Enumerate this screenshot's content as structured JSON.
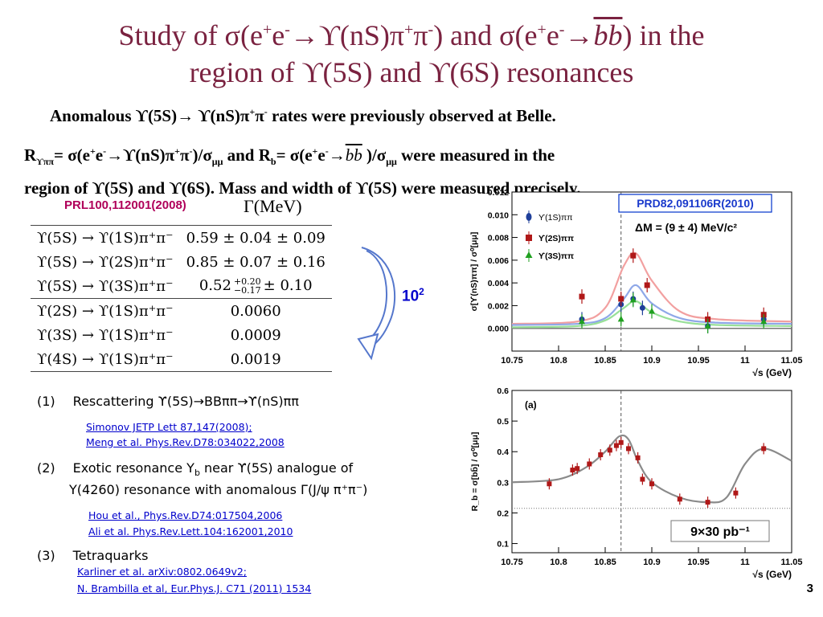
{
  "slide": {
    "title_line1_a": "Study of σ(e",
    "title_sup1": "+",
    "title_line1_b": "e",
    "title_sup2": "-",
    "title_line1_c": "→ϒ(nS)π",
    "title_sup3": "+",
    "title_line1_d": "π",
    "title_sup4": "-",
    "title_line1_e": ") and σ(e",
    "title_sup5": "+",
    "title_line1_f": "e",
    "title_sup6": "-",
    "title_line1_g": "→",
    "title_bb": "bb",
    "title_line1_h": ") in the",
    "title_line2": "region of ϒ(5S) and ϒ(6S) resonances",
    "page_number": "3"
  },
  "text": {
    "line1_a": "Anomalous ϒ(5S)→ ϒ(nS)π",
    "line1_sup1": "+",
    "line1_b": "π",
    "line1_sup2": "-",
    "line1_c": " rates were previously observed at Belle.",
    "line2_a": "R",
    "line2_sub1": "ϒππ",
    "line2_b": "= σ(e",
    "line2_sup1": "+",
    "line2_c": "e",
    "line2_sup2": "-",
    "line2_d": "→ϒ(nS)π",
    "line2_sup3": "+",
    "line2_e": "π",
    "line2_sup4": "-",
    "line2_f": ")/σ",
    "line2_sub2": "μμ",
    "line2_g": " and R",
    "line2_sub3": "b",
    "line2_h": "= σ(e",
    "line2_sup5": "+",
    "line2_i": "e",
    "line2_sup6": "-",
    "line2_j": "→",
    "line2_bb": "bb",
    "line2_k": " )/σ",
    "line2_sub4": "μμ",
    "line2_l": " were measured in the",
    "line3": "region of  ϒ(5S) and ϒ(6S). Mass and width of  ϒ(5S)  were measured precisely."
  },
  "table": {
    "ref": "PRL100,112001(2008)",
    "header": "Γ(MeV)",
    "rows": [
      {
        "process": "ϒ(5S) → ϒ(1S)π⁺π⁻",
        "value": "0.59 ± 0.04 ± 0.09"
      },
      {
        "process": "ϒ(5S) → ϒ(2S)π⁺π⁻",
        "value": "0.85 ± 0.07 ± 0.16"
      },
      {
        "process": "ϒ(5S) → ϒ(3S)π⁺π⁻",
        "value": "0.52",
        "err_up": "+0.20",
        "err_dn": "−0.17",
        "value2": "± 0.10"
      },
      {
        "process": "ϒ(2S) → ϒ(1S)π⁺π⁻",
        "value": "0.0060"
      },
      {
        "process": "ϒ(3S) → ϒ(1S)π⁺π⁻",
        "value": "0.0009"
      },
      {
        "process": "ϒ(4S) → ϒ(1S)π⁺π⁻",
        "value": "0.0019"
      }
    ],
    "ratio_base": "10",
    "ratio_exp": "2"
  },
  "explanations": {
    "item1_num": "(1)",
    "item1": "Rescattering ϒ(5S)→BBππ→ϒ(nS)ππ",
    "item1_refs": [
      "Simonov JETP Lett 87,147(2008);",
      "Meng et al. Phys.Rev.D78:034022,2008"
    ],
    "item2_num": "(2)",
    "item2_a": "Exotic resonance Y",
    "item2_sub": "b",
    "item2_b": " near ϒ(5S) analogue of",
    "item2_line2": "Y(4260)  resonance with anomalous Γ(J/ψ π⁺π⁻)",
    "item2_refs": [
      "Hou et al., Phys.Rev.D74:017504,2006",
      "Ali et al. Phys.Rev.Lett.104:162001,2010"
    ],
    "item3_num": "(3)",
    "item3": "Tetraquarks",
    "item3_refs": [
      "Karliner et al. arXiv:0802.0649v2;",
      "N. Brambilla et al, Eur.Phys.J. C71 (2011) 1534"
    ]
  },
  "colors": {
    "title": "#7a2240",
    "ref": "#b0005a",
    "link": "#0000cc",
    "series_1s": "#1f3f9a",
    "series_2s": "#b01818",
    "series_3s": "#20a020",
    "fit_1s": "#8fa8e8",
    "fit_2s": "#f2a0a0",
    "fit_3s": "#98e098"
  },
  "chart_data": [
    {
      "type": "scatter",
      "title": "PRD82,091106R(2010)",
      "annotation": "ΔM = (9 ± 4) MeV/c²",
      "ylabel": "σ[ϒ(nS)ππ] / σ⁰[μμ]",
      "xlabel": "√s (GeV)",
      "xlim": [
        10.75,
        11.05
      ],
      "ylim": [
        -0.002,
        0.012
      ],
      "xticks": [
        "10.75",
        "10.8",
        "10.85",
        "10.9",
        "10.95",
        "11",
        "11.05"
      ],
      "yticks": [
        "0.000",
        "0.002",
        "0.004",
        "0.006",
        "0.008",
        "0.010",
        "0.012"
      ],
      "legend_position": "top-left",
      "marker_line_x": 10.867,
      "series": [
        {
          "name": "ϒ(1S)ππ",
          "x": [
            10.825,
            10.867,
            10.88,
            10.89,
            10.96,
            11.02
          ],
          "y": [
            0.0008,
            0.0021,
            0.0026,
            0.0018,
            0.0002,
            0.0008
          ],
          "fit": {
            "x": [
              10.75,
              10.82,
              10.85,
              10.87,
              10.883,
              10.9,
              10.93,
              10.97,
              11.05
            ],
            "y": [
              0.0003,
              0.0004,
              0.0009,
              0.0026,
              0.0038,
              0.0022,
              0.0009,
              0.0005,
              0.0004
            ]
          }
        },
        {
          "name": "ϒ(2S)ππ",
          "x": [
            10.825,
            10.867,
            10.88,
            10.895,
            10.96,
            11.02
          ],
          "y": [
            0.0028,
            0.0026,
            0.0064,
            0.0038,
            0.0008,
            0.0012
          ],
          "fit": {
            "x": [
              10.75,
              10.82,
              10.85,
              10.87,
              10.883,
              10.9,
              10.93,
              10.97,
              11.05
            ],
            "y": [
              0.0004,
              0.0006,
              0.0018,
              0.0055,
              0.0066,
              0.0042,
              0.0015,
              0.0008,
              0.0006
            ]
          }
        },
        {
          "name": "ϒ(3S)ππ",
          "x": [
            10.825,
            10.867,
            10.88,
            10.9,
            10.96,
            11.02
          ],
          "y": [
            0.0006,
            0.0008,
            0.0025,
            0.0015,
            0.0002,
            0.0006
          ],
          "fit": {
            "x": [
              10.75,
              10.82,
              10.85,
              10.87,
              10.883,
              10.9,
              10.93,
              10.97,
              11.05
            ],
            "y": [
              0.0001,
              0.0002,
              0.0007,
              0.0018,
              0.0024,
              0.0014,
              0.0006,
              0.0003,
              0.0002
            ]
          }
        }
      ]
    },
    {
      "type": "scatter",
      "panel_label": "(a)",
      "annotation": "9×30 pb⁻¹",
      "ylabel": "R_b = σ[bb̄] / σ⁰[μμ]",
      "xlabel": "√s (GeV)",
      "xlim": [
        10.75,
        11.05
      ],
      "ylim": [
        0.07,
        0.6
      ],
      "xticks": [
        "10.75",
        "10.8",
        "10.85",
        "10.9",
        "10.95",
        "11",
        "11.05"
      ],
      "yticks": [
        "0.1",
        "0.2",
        "0.3",
        "0.4",
        "0.5",
        "0.6"
      ],
      "marker_line_x": 10.867,
      "reference_line_y": 0.215,
      "series": [
        {
          "name": "data",
          "x": [
            10.79,
            10.815,
            10.82,
            10.833,
            10.845,
            10.855,
            10.862,
            10.867,
            10.875,
            10.885,
            10.89,
            10.9,
            10.93,
            10.96,
            10.99,
            11.02
          ],
          "y": [
            0.295,
            0.34,
            0.345,
            0.36,
            0.39,
            0.405,
            0.42,
            0.43,
            0.41,
            0.38,
            0.31,
            0.295,
            0.245,
            0.235,
            0.265,
            0.41
          ],
          "fit": {
            "x": [
              10.75,
              10.8,
              10.83,
              10.85,
              10.865,
              10.875,
              10.885,
              10.9,
              10.93,
              10.96,
              10.98,
              11.0,
              11.02,
              11.05
            ],
            "y": [
              0.3,
              0.31,
              0.35,
              0.4,
              0.45,
              0.44,
              0.37,
              0.3,
              0.25,
              0.235,
              0.25,
              0.36,
              0.41,
              0.37
            ]
          }
        }
      ]
    }
  ]
}
